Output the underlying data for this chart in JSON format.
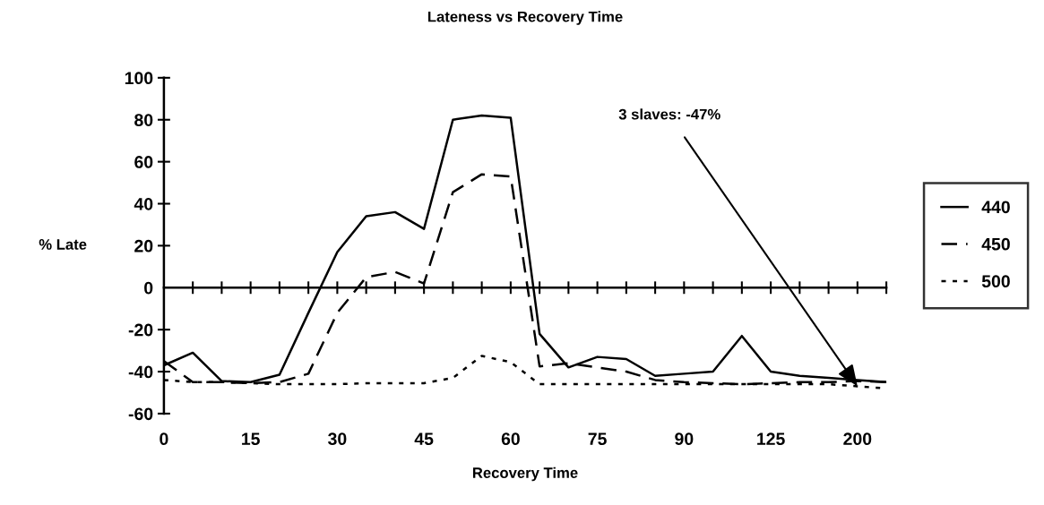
{
  "chart_data": {
    "type": "line",
    "title": "Lateness vs Recovery Time",
    "xlabel": "Recovery Time",
    "ylabel": "% Late",
    "categories": [
      "0",
      null,
      null,
      "15",
      null,
      null,
      "30",
      null,
      null,
      "45",
      null,
      null,
      "60",
      null,
      null,
      "75",
      null,
      null,
      "90",
      null,
      null,
      "125",
      null,
      null,
      "200",
      null
    ],
    "series": [
      {
        "name": "440",
        "color": "#000000",
        "line_style": "solid",
        "values": [
          -37,
          -31,
          -44.5,
          -45,
          -41.5,
          -12,
          17,
          34,
          36,
          28,
          80,
          82,
          81,
          -22,
          -38,
          -33,
          -34,
          -42,
          -41,
          -40,
          -23,
          -40,
          -42,
          -43,
          -44,
          -45
        ]
      },
      {
        "name": "450",
        "color": "#000000",
        "line_style": "dashed",
        "values": [
          -35,
          -45,
          -45,
          -45.5,
          -45,
          -41,
          -12,
          5,
          7.5,
          2,
          45.5,
          54,
          53,
          -37.5,
          -36,
          -38,
          -40,
          -44,
          -45,
          -45.5,
          -46,
          -45.5,
          -45,
          -45,
          -44.5,
          -45
        ]
      },
      {
        "name": "500",
        "color": "#000000",
        "line_style": "dotted",
        "values": [
          -44,
          -45,
          -45,
          -45.5,
          -46,
          -46,
          -46,
          -45.5,
          -45.5,
          -45.5,
          -43,
          -32.5,
          -35.5,
          -46,
          -46,
          -46,
          -46,
          -46,
          -46,
          -46,
          -46,
          -46,
          -46,
          -46,
          -47,
          -48
        ]
      }
    ],
    "ylim": [
      -60,
      100
    ],
    "yticks": [
      -60,
      -40,
      -20,
      0,
      20,
      40,
      60,
      80,
      100
    ],
    "legend": "right",
    "marker": "none",
    "annotations": [
      {
        "text": "3 slaves: -47%",
        "x": "200",
        "y": -47
      }
    ]
  }
}
